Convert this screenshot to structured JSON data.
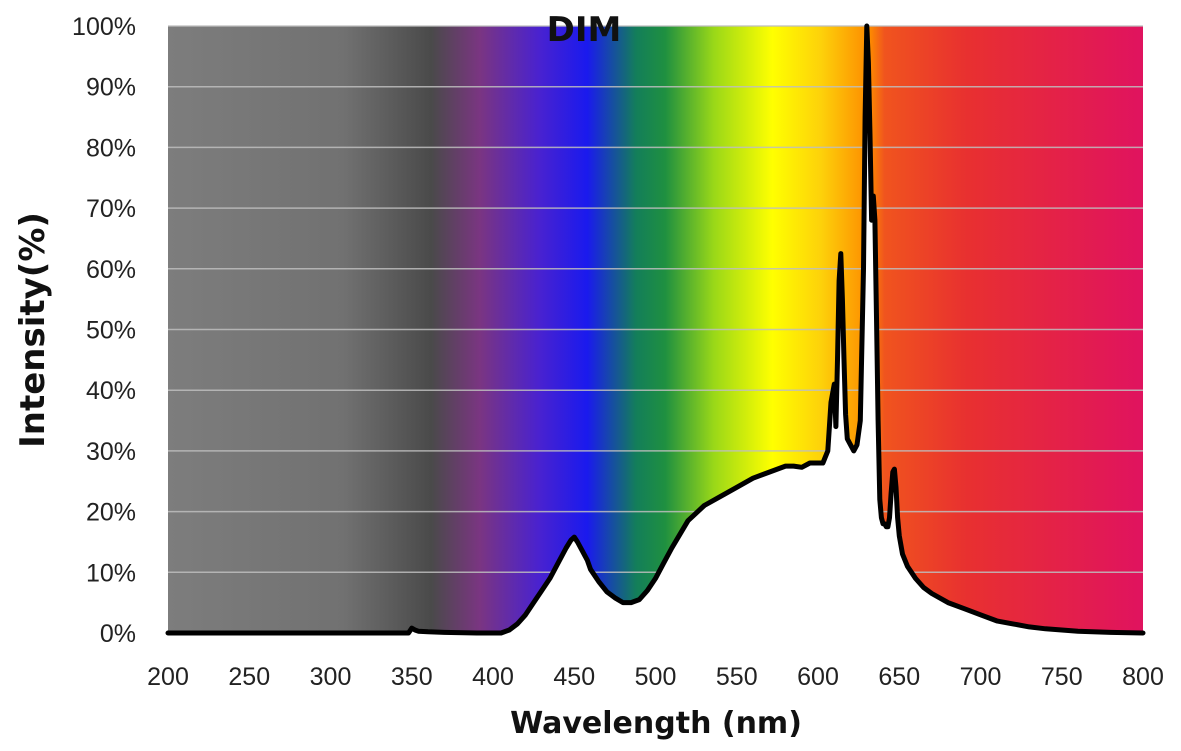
{
  "chart_data": {
    "type": "area",
    "title": "DIM",
    "xlabel": "Wavelength (nm)",
    "ylabel": "Intensity(%)",
    "xlim": [
      200,
      800
    ],
    "ylim": [
      0,
      100
    ],
    "x_ticks": [
      "200",
      "250",
      "300",
      "350",
      "400",
      "450",
      "500",
      "550",
      "600",
      "650",
      "700",
      "750",
      "800"
    ],
    "y_ticks": [
      "0%",
      "10%",
      "20%",
      "30%",
      "40%",
      "50%",
      "60%",
      "70%",
      "80%",
      "90%",
      "100%"
    ],
    "grid": true,
    "background": "visible-spectrum gradient",
    "line_color": "#000000",
    "fill_color": "#ffffff",
    "series": [
      {
        "x": [
          200,
          300,
          340,
          348,
          350,
          352,
          354,
          360,
          370,
          390,
          405,
          410,
          415,
          420,
          425,
          430,
          435,
          440,
          445,
          448,
          450,
          452,
          455,
          458,
          460,
          465,
          470,
          475,
          480,
          485,
          490,
          495,
          500,
          505,
          510,
          520,
          530,
          540,
          550,
          560,
          570,
          580,
          585,
          590,
          595,
          600,
          603,
          606,
          608,
          610,
          611,
          612,
          613,
          614,
          615,
          616,
          617,
          618,
          620,
          622,
          624,
          626,
          628,
          629,
          630,
          631,
          632,
          633,
          634,
          635,
          636,
          637,
          638,
          639,
          640,
          641,
          642,
          643,
          644,
          645,
          646,
          647,
          648,
          649,
          650,
          652,
          655,
          660,
          665,
          670,
          680,
          690,
          700,
          710,
          720,
          730,
          740,
          750,
          760,
          780,
          800
        ],
        "y": [
          0,
          0,
          0,
          0,
          0.8,
          0.5,
          0.3,
          0.2,
          0.1,
          0,
          0,
          0.5,
          1.5,
          3,
          5,
          7,
          9,
          11.5,
          14,
          15.3,
          15.8,
          15,
          13.5,
          12,
          10.5,
          8.5,
          6.8,
          5.8,
          5,
          5,
          5.5,
          7,
          9,
          11.5,
          14,
          18.5,
          21,
          22.5,
          24,
          25.5,
          26.5,
          27.5,
          27.5,
          27.3,
          28,
          28,
          28,
          30,
          38,
          41,
          34,
          45,
          58,
          62.5,
          55,
          45,
          36,
          32,
          31,
          30,
          31,
          35,
          60,
          85,
          100,
          94,
          82,
          68,
          72,
          68,
          52,
          35,
          22,
          19,
          18,
          18,
          17.5,
          17.5,
          19,
          23,
          26.5,
          27,
          24,
          19,
          16,
          13,
          11,
          9,
          7.5,
          6.5,
          5,
          4,
          3,
          2,
          1.5,
          1,
          0.7,
          0.5,
          0.3,
          0.1,
          0
        ]
      }
    ]
  }
}
